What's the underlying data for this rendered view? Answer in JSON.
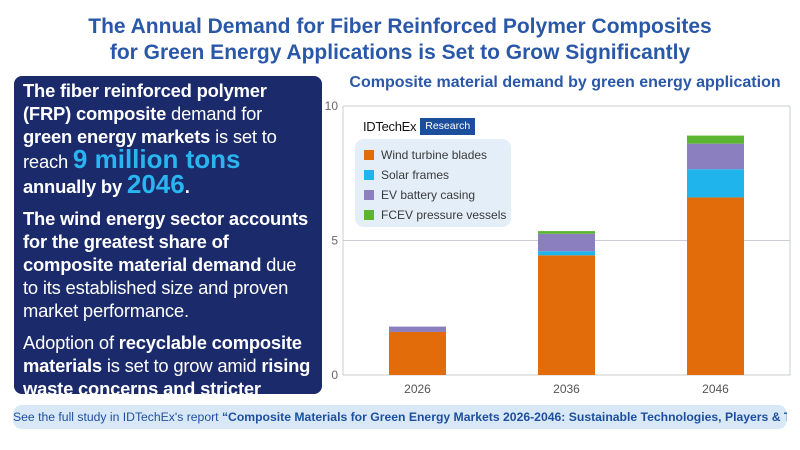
{
  "header": {
    "title_line1": "The Annual Demand for Fiber Reinforced Polymer Composites",
    "title_line2": "for Green Energy Applications is Set to Grow Significantly"
  },
  "panel": {
    "p1_a": "The fiber reinforced polymer (FRP) composite",
    "p1_b": " demand for ",
    "p1_c": "green energy markets",
    "p1_d": " is set to reach ",
    "p1_e": "9 million tons",
    "p1_f": " annually by ",
    "p1_g": "2046",
    "p1_h": ".",
    "p2_a": "The wind energy sector accounts for the greatest share of composite material demand",
    "p2_b": " due to its established size and proven market performance.",
    "p3_a": "Adoption of ",
    "p3_b": "recyclable composite materials",
    "p3_c": " is set to grow amid ",
    "p3_d": "rising waste concerns and stricter legislation."
  },
  "branding": {
    "logo": "IDTechEx",
    "tag": "Research"
  },
  "footer": {
    "prefix": "See the full study in IDTechEx's report ",
    "report": "“Composite Materials for Green Energy Markets 2026-2046: Sustainable Technologies, Players & Trends”"
  },
  "colors": {
    "title": "#2a58a8",
    "panel": "#1b2a6b",
    "highlight": "#2bb5f0",
    "wind": "#e36c0a",
    "solar": "#1fb4ec",
    "ev": "#8b7fc0",
    "fcev": "#5bb531"
  },
  "chart_data": {
    "type": "bar",
    "stacked": true,
    "title": "Composite material demand by green energy application",
    "xlabel": "",
    "ylabel": "",
    "ylim": [
      0,
      10
    ],
    "yticks": [
      0,
      5,
      10
    ],
    "grid": true,
    "legend_position": "top-left",
    "categories": [
      "2026",
      "2036",
      "2046"
    ],
    "series": [
      {
        "name": "Wind turbine blades",
        "color": "#e36c0a",
        "values": [
          1.6,
          4.45,
          6.6
        ]
      },
      {
        "name": "Solar frames",
        "color": "#1fb4ec",
        "values": [
          0.0,
          0.15,
          1.05
        ]
      },
      {
        "name": "EV battery casing",
        "color": "#8b7fc0",
        "values": [
          0.2,
          0.65,
          0.95
        ]
      },
      {
        "name": "FCEV pressure vessels",
        "color": "#5bb531",
        "values": [
          0.0,
          0.1,
          0.3
        ]
      }
    ]
  }
}
